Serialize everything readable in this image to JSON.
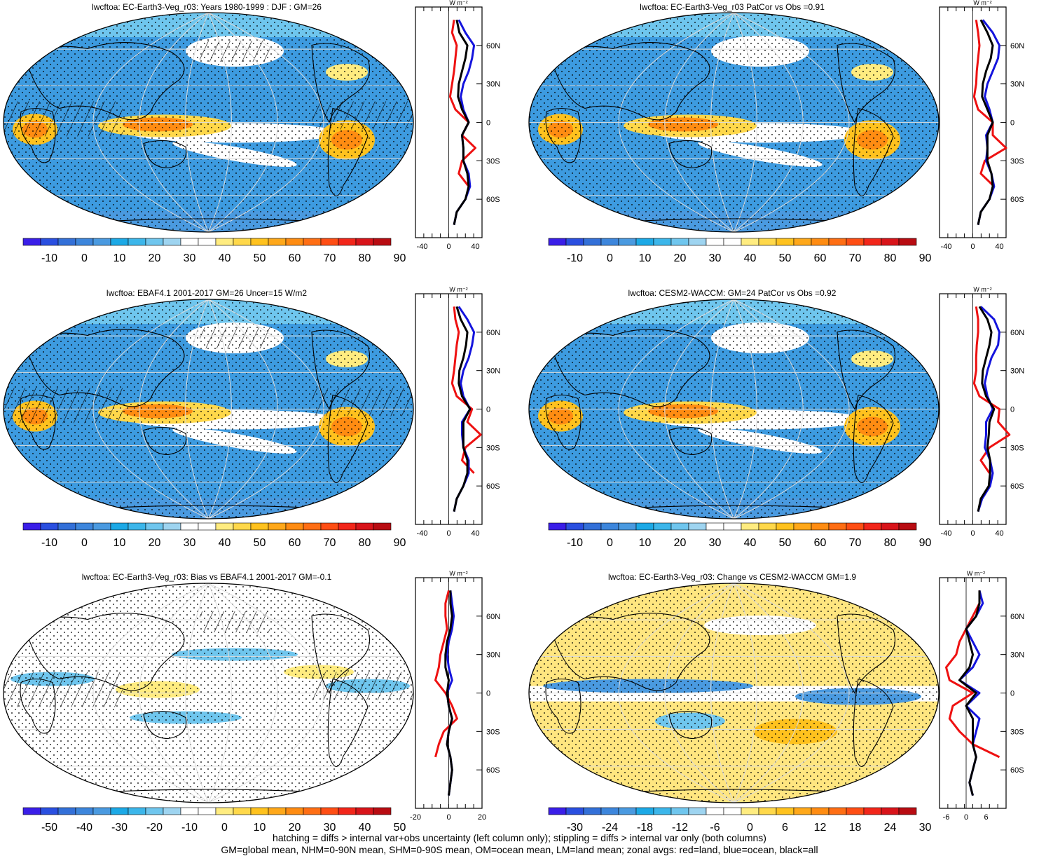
{
  "panels": [
    {
      "id": "p1",
      "title": "lwcftoa: EC-Earth3-Veg_r03: Years 1980-1999 : DJF : GM=26",
      "colorbar": {
        "labels": [
          "-10",
          "0",
          "10",
          "20",
          "30",
          "40",
          "50",
          "60",
          "70",
          "80",
          "90"
        ],
        "type": "full"
      },
      "zonal": {
        "xticks": [
          "-40",
          "0",
          "40"
        ],
        "xrange": [
          -50,
          50
        ],
        "units": "W m⁻²",
        "lat_labels": [
          "60N",
          "30N",
          "0",
          "30S",
          "60S"
        ]
      }
    },
    {
      "id": "p2",
      "title": "lwcftoa: EC-Earth3-Veg_r03 PatCor vs Obs =0.91",
      "colorbar": {
        "labels": [
          "-10",
          "0",
          "10",
          "20",
          "30",
          "40",
          "50",
          "60",
          "70",
          "80",
          "90"
        ],
        "type": "full"
      },
      "zonal": {
        "xticks": [
          "-40",
          "0",
          "40"
        ],
        "xrange": [
          -50,
          50
        ],
        "units": "W m⁻²",
        "lat_labels": [
          "60N",
          "30N",
          "0",
          "30S",
          "60S"
        ]
      }
    },
    {
      "id": "p3",
      "title": "lwcftoa: EBAF4.1 2001-2017 GM=26 Uncer=15 W/m2",
      "colorbar": {
        "labels": [
          "-10",
          "0",
          "10",
          "20",
          "30",
          "40",
          "50",
          "60",
          "70",
          "80",
          "90"
        ],
        "type": "full"
      },
      "zonal": {
        "xticks": [
          "-40",
          "0",
          "40"
        ],
        "xrange": [
          -50,
          50
        ],
        "units": "W m⁻²",
        "lat_labels": [
          "60N",
          "30N",
          "0",
          "30S",
          "60S"
        ]
      }
    },
    {
      "id": "p4",
      "title": "lwcftoa: CESM2-WACCM: GM=24 PatCor vs Obs =0.92",
      "colorbar": {
        "labels": [
          "-10",
          "0",
          "10",
          "20",
          "30",
          "40",
          "50",
          "60",
          "70",
          "80",
          "90"
        ],
        "type": "full"
      },
      "zonal": {
        "xticks": [
          "-40",
          "0",
          "40"
        ],
        "xrange": [
          -50,
          50
        ],
        "units": "W m⁻²",
        "lat_labels": [
          "60N",
          "30N",
          "0",
          "30S",
          "60S"
        ]
      }
    },
    {
      "id": "p5",
      "title": "lwcftoa: EC-Earth3-Veg_r03: Bias vs EBAF4.1 2001-2017 GM=-0.1",
      "colorbar": {
        "labels": [
          "-50",
          "-40",
          "-30",
          "-20",
          "-10",
          "0",
          "10",
          "20",
          "30",
          "40",
          "50"
        ],
        "type": "diff"
      },
      "zonal": {
        "xticks": [
          "-20",
          "0",
          "20"
        ],
        "xrange": [
          -20,
          20
        ],
        "units": "W m⁻²",
        "lat_labels": [
          "60N",
          "30N",
          "0",
          "30S",
          "60S"
        ]
      }
    },
    {
      "id": "p6",
      "title": "lwcftoa: EC-Earth3-Veg_r03: Change vs CESM2-WACCM GM=1.9",
      "colorbar": {
        "labels": [
          "-30",
          "-24",
          "-18",
          "-12",
          "-6",
          "0",
          "6",
          "12",
          "18",
          "24",
          "30"
        ],
        "type": "diff"
      },
      "zonal": {
        "xticks": [
          "-6",
          "0",
          "6"
        ],
        "xrange": [
          -8,
          12
        ],
        "units": "W m⁻²",
        "lat_labels": [
          "60N",
          "30N",
          "0",
          "30S",
          "60S"
        ]
      }
    }
  ],
  "colors": {
    "full": [
      "#3a1ee8",
      "#2a4fe0",
      "#3370d8",
      "#3d86dc",
      "#4a9ae0",
      "#1ca9e6",
      "#3cb6ea",
      "#6fc6ee",
      "#9ed4f0",
      "#ffffff",
      "#ffffff",
      "#ffec80",
      "#ffd84a",
      "#ffc21e",
      "#ffa81a",
      "#ff8c12",
      "#ff6e14",
      "#ff4e14",
      "#f2261a",
      "#d8141a",
      "#b80c12"
    ],
    "diff": [
      "#3a1ee8",
      "#2a4fe0",
      "#3370d8",
      "#3d86dc",
      "#4a9ae0",
      "#1ca9e6",
      "#3cb6ea",
      "#6fc6ee",
      "#9ed4f0",
      "#ffffff",
      "#ffffff",
      "#ffec80",
      "#ffd84a",
      "#ffc21e",
      "#ffa81a",
      "#ff8c12",
      "#ff6e14",
      "#ff4e14",
      "#f2261a",
      "#d8141a",
      "#b80c12"
    ],
    "land": "#ee1111",
    "ocean": "#1414dd",
    "all": "#000000"
  },
  "chart_data": [
    {
      "type": "heatmap",
      "title": "lwcftoa: EC-Earth3-Veg_r03: Years 1980-1999 : DJF : GM=26",
      "colorbar_ticks": [
        -10,
        0,
        10,
        20,
        30,
        40,
        50,
        60,
        70,
        80,
        90
      ],
      "zonal_profile": {
        "lat": [
          80,
          70,
          60,
          50,
          40,
          30,
          20,
          10,
          0,
          -10,
          -20,
          -30,
          -40,
          -50,
          -60,
          -70,
          -80
        ],
        "land": [
          8,
          5,
          12,
          10,
          8,
          5,
          2,
          10,
          30,
          20,
          40,
          20,
          15,
          30,
          null,
          null,
          null
        ],
        "ocean": [
          15,
          25,
          38,
          35,
          30,
          22,
          18,
          22,
          30,
          20,
          22,
          22,
          30,
          32,
          25,
          12,
          8
        ],
        "all": [
          12,
          16,
          28,
          25,
          20,
          15,
          14,
          20,
          30,
          20,
          22,
          22,
          28,
          30,
          25,
          12,
          8
        ]
      }
    },
    {
      "type": "heatmap",
      "title": "lwcftoa: EC-Earth3-Veg_r03 PatCor vs Obs =0.91",
      "colorbar_ticks": [
        -10,
        0,
        10,
        20,
        30,
        40,
        50,
        60,
        70,
        80,
        90
      ],
      "zonal_profile": {
        "lat": [
          80,
          70,
          60,
          50,
          40,
          30,
          20,
          10,
          0,
          -10,
          -20,
          -30,
          -40,
          -50,
          -60,
          -70,
          -80
        ],
        "land": [
          5,
          8,
          10,
          8,
          6,
          5,
          2,
          8,
          30,
          30,
          50,
          18,
          12,
          32,
          null,
          null,
          null
        ],
        "ocean": [
          15,
          30,
          40,
          38,
          30,
          22,
          18,
          25,
          30,
          20,
          22,
          20,
          28,
          32,
          25,
          12,
          8
        ],
        "all": [
          12,
          22,
          30,
          27,
          20,
          15,
          14,
          22,
          30,
          22,
          22,
          22,
          28,
          30,
          25,
          12,
          8
        ]
      }
    },
    {
      "type": "heatmap",
      "title": "lwcftoa: EBAF4.1 2001-2017 GM=26 Uncer=15 W/m2",
      "colorbar_ticks": [
        -10,
        0,
        10,
        20,
        30,
        40,
        50,
        60,
        70,
        80,
        90
      ],
      "zonal_profile": {
        "lat": [
          80,
          70,
          60,
          50,
          40,
          30,
          20,
          10,
          0,
          -10,
          -20,
          -30,
          -40,
          -50,
          -60,
          -70,
          -80
        ],
        "land": [
          8,
          10,
          15,
          12,
          10,
          8,
          5,
          12,
          35,
          28,
          48,
          25,
          20,
          38,
          null,
          null,
          null
        ],
        "ocean": [
          15,
          28,
          38,
          35,
          30,
          22,
          18,
          22,
          32,
          20,
          20,
          22,
          30,
          30,
          22,
          12,
          8
        ],
        "all": [
          12,
          18,
          28,
          26,
          22,
          16,
          15,
          20,
          32,
          22,
          22,
          22,
          28,
          28,
          22,
          12,
          8
        ]
      }
    },
    {
      "type": "heatmap",
      "title": "lwcftoa: CESM2-WACCM: GM=24 PatCor vs Obs =0.92",
      "colorbar_ticks": [
        -10,
        0,
        10,
        20,
        30,
        40,
        50,
        60,
        70,
        80,
        90
      ],
      "zonal_profile": {
        "lat": [
          80,
          70,
          60,
          50,
          40,
          30,
          20,
          10,
          0,
          -10,
          -20,
          -30,
          -40,
          -50,
          -60,
          -70,
          -80
        ],
        "land": [
          5,
          8,
          8,
          6,
          5,
          5,
          2,
          10,
          40,
          38,
          55,
          25,
          12,
          25,
          null,
          null,
          null
        ],
        "ocean": [
          12,
          32,
          40,
          38,
          28,
          22,
          18,
          22,
          30,
          20,
          20,
          18,
          26,
          30,
          26,
          14,
          8
        ],
        "all": [
          10,
          22,
          28,
          25,
          20,
          15,
          14,
          20,
          32,
          25,
          24,
          22,
          26,
          26,
          24,
          12,
          8
        ]
      }
    },
    {
      "type": "heatmap",
      "title": "lwcftoa: EC-Earth3-Veg_r03: Bias vs EBAF4.1 2001-2017 GM=-0.1",
      "colorbar_ticks": [
        -50,
        -40,
        -30,
        -20,
        -10,
        0,
        10,
        20,
        30,
        40,
        50
      ],
      "zonal_profile": {
        "lat": [
          80,
          70,
          60,
          50,
          40,
          30,
          20,
          10,
          0,
          -10,
          -20,
          -30,
          -40,
          -50,
          -60,
          -70,
          -80
        ],
        "land": [
          0,
          -2,
          -2,
          -1,
          -3,
          -5,
          -6,
          -8,
          -2,
          2,
          5,
          -3,
          -6,
          -8,
          null,
          null,
          null
        ],
        "ocean": [
          1,
          2,
          3,
          2,
          0,
          -1,
          0,
          2,
          -1,
          0,
          2,
          0,
          -1,
          1,
          2,
          1,
          0
        ],
        "all": [
          1,
          1,
          2,
          1,
          -1,
          -2,
          -2,
          0,
          -1,
          0,
          2,
          0,
          -1,
          1,
          2,
          1,
          0
        ]
      }
    },
    {
      "type": "heatmap",
      "title": "lwcftoa: EC-Earth3-Veg_r03: Change vs CESM2-WACCM GM=1.9",
      "colorbar_ticks": [
        -30,
        -24,
        -18,
        -12,
        -6,
        0,
        6,
        12,
        18,
        24,
        30
      ],
      "zonal_profile": {
        "lat": [
          80,
          70,
          60,
          50,
          40,
          30,
          20,
          10,
          0,
          -10,
          -20,
          -30,
          -40,
          -50,
          -60,
          -70,
          -80
        ],
        "land": [
          4,
          4,
          2,
          0,
          -2,
          -3,
          -6,
          -5,
          2,
          -4,
          -5,
          -2,
          2,
          10,
          null,
          null,
          null
        ],
        "ocean": [
          4,
          5,
          3,
          0,
          2,
          4,
          2,
          -2,
          4,
          0,
          4,
          3,
          2,
          3,
          2,
          1,
          2
        ],
        "all": [
          4,
          4,
          3,
          0,
          1,
          2,
          1,
          -2,
          3,
          0,
          2,
          2,
          2,
          3,
          2,
          1,
          2
        ]
      }
    }
  ],
  "footnote": {
    "line1": "hatching = diffs > internal var+obs uncertainty (left column only); stippling = diffs > internal var only (both columns)",
    "line2": "GM=global mean, NHM=0-90N mean, SHM=0-90S mean, OM=ocean mean, LM=land mean; zonal avgs: red=land, blue=ocean, black=all"
  }
}
